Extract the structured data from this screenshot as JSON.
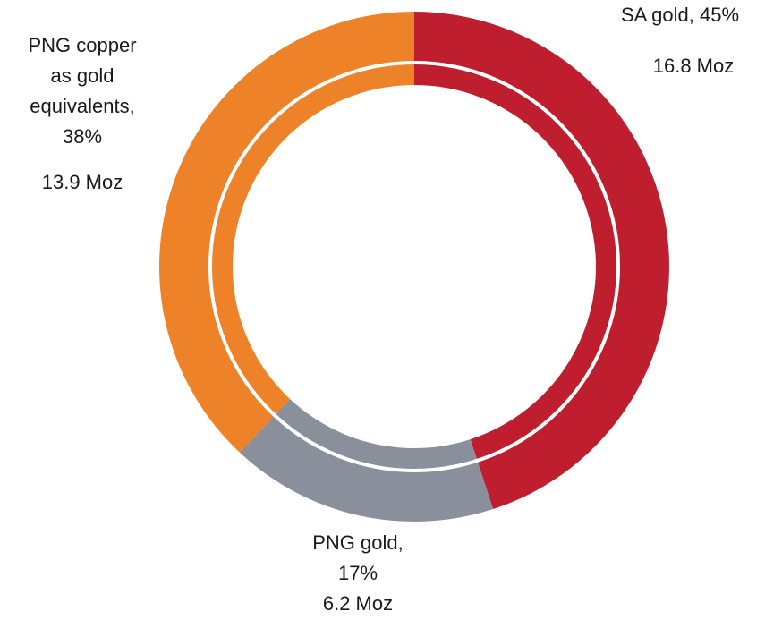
{
  "chart_data": {
    "type": "donut",
    "labels": [
      [
        "SA gold, 45%"
      ],
      [
        "PNG gold,",
        "17%"
      ],
      [
        "PNG copper",
        "as gold",
        "equivalents,",
        "38%"
      ]
    ],
    "values": [
      45,
      17,
      38
    ],
    "amount_labels": [
      "16.8 Moz",
      "6.2 Moz",
      "13.9 Moz"
    ],
    "colors": [
      "#be1e2d",
      "#8a8f9c",
      "#ee8228"
    ]
  }
}
